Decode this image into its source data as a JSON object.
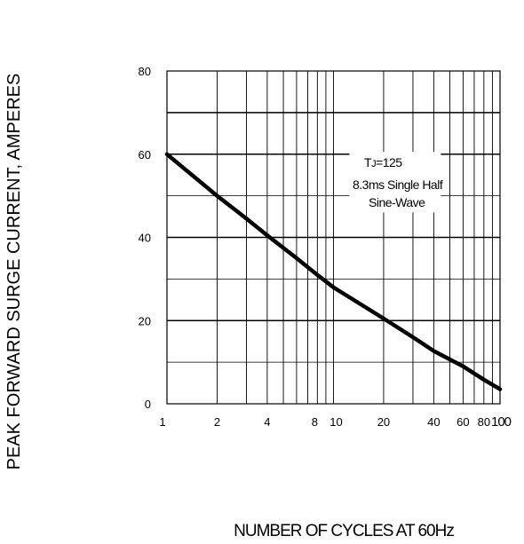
{
  "chart_data": {
    "type": "line",
    "xlabel": "NUMBER OF CYCLES AT 60Hz",
    "ylabel": "PEAK FORWARD SURGE CURRENT, AMPERES",
    "x_scale": "log",
    "xlim": [
      1,
      100
    ],
    "ylim": [
      0,
      80
    ],
    "grid": true,
    "x_ticks": [
      1,
      2,
      4,
      8,
      10,
      20,
      40,
      60,
      80,
      100
    ],
    "x_tick_labels": [
      "1",
      "2",
      "4",
      "8",
      "10",
      "20",
      "40",
      "60",
      "80",
      "100"
    ],
    "y_ticks": [
      0,
      20,
      40,
      60,
      80
    ],
    "y_tick_labels": [
      "0",
      "20",
      "40",
      "60",
      "80"
    ],
    "annotation": [
      "TJ=125",
      "8.3ms Single Half",
      "Sine-Wave"
    ],
    "series": [
      {
        "x": [
          1,
          2,
          3,
          4,
          6,
          8,
          10,
          20,
          30,
          40,
          60,
          80,
          100
        ],
        "y": [
          60,
          50,
          44.5,
          40.5,
          35,
          31,
          28,
          20.5,
          16,
          12.7,
          9,
          5.8,
          3.5
        ]
      }
    ]
  }
}
